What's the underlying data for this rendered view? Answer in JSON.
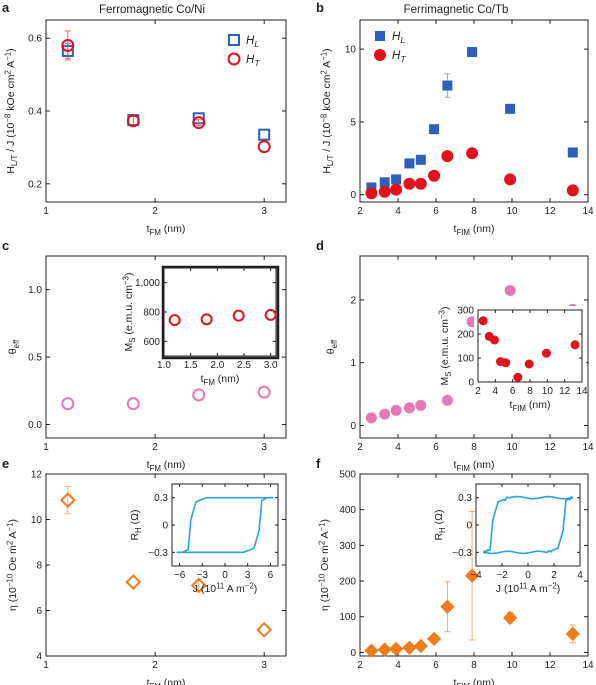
{
  "colors": {
    "blue": "#2e5fba",
    "red": "#e0121b",
    "pink": "#e678b4",
    "orange": "#f07b1c",
    "cyan": "#2aa3de",
    "err_red": "#e35a5a",
    "err_orange": "#f2a35e"
  },
  "chart_data": [
    {
      "panel": "a",
      "type": "scatter",
      "title": "Ferromagnetic Co/Ni",
      "xlabel": "t_FM (nm)",
      "ylabel": "H_L/T / J (10^-8 kOe cm^2 A^-1)",
      "xlim": [
        1,
        3.2
      ],
      "ylim": [
        0.15,
        0.65
      ],
      "xticks": [
        "1",
        "2",
        "3"
      ],
      "yticks": [
        "0.2",
        "0.4",
        "0.6"
      ],
      "legend": {
        "position": "top-right",
        "entries": [
          "H_L",
          "H_T"
        ]
      },
      "series": [
        {
          "name": "H_L",
          "marker": "open-square",
          "color": "blue",
          "x": [
            1.2,
            1.8,
            2.4,
            3.0
          ],
          "y": [
            0.565,
            0.375,
            0.38,
            0.335
          ],
          "err": [
            0.02,
            0,
            0,
            0
          ]
        },
        {
          "name": "H_T",
          "marker": "open-circle",
          "color": "red",
          "x": [
            1.2,
            1.8,
            2.4,
            3.0
          ],
          "y": [
            0.58,
            0.373,
            0.368,
            0.302
          ],
          "err": [
            0.04,
            0.012,
            0.008,
            0
          ]
        }
      ]
    },
    {
      "panel": "b",
      "type": "scatter",
      "title": "Ferrimagnetic Co/Tb",
      "xlabel": "t_FIM (nm)",
      "ylabel": "H_L/T / J (10^-8 kOe cm^2 A^-1)",
      "xlim": [
        2,
        14
      ],
      "ylim": [
        -0.5,
        12
      ],
      "xticks": [
        "2",
        "4",
        "6",
        "8",
        "10",
        "12",
        "14"
      ],
      "yticks": [
        "0",
        "5",
        "10"
      ],
      "legend": {
        "position": "top-left",
        "entries": [
          "H_L",
          "H_T"
        ]
      },
      "series": [
        {
          "name": "H_L",
          "marker": "filled-square",
          "color": "blue",
          "x": [
            2.6,
            3.3,
            3.9,
            4.6,
            5.2,
            5.9,
            6.6,
            7.9,
            9.9,
            13.2
          ],
          "y": [
            0.5,
            0.85,
            1.05,
            2.15,
            2.4,
            4.5,
            7.5,
            9.8,
            5.9,
            2.9
          ],
          "err": [
            0,
            0,
            0,
            0,
            0,
            0,
            0.8,
            0,
            0,
            0
          ]
        },
        {
          "name": "H_T",
          "marker": "filled-circle",
          "color": "red",
          "x": [
            2.6,
            3.3,
            3.9,
            4.6,
            5.2,
            5.9,
            6.6,
            7.9,
            9.9,
            13.2
          ],
          "y": [
            0.1,
            0.2,
            0.35,
            0.75,
            0.75,
            1.3,
            2.65,
            2.85,
            1.05,
            0.3
          ],
          "err": [
            0,
            0,
            0,
            0,
            0,
            0,
            0,
            0,
            0,
            0
          ]
        }
      ]
    },
    {
      "panel": "c",
      "type": "scatter",
      "xlabel": "t_FM (nm)",
      "ylabel": "θ_eff",
      "xlim": [
        1,
        3.2
      ],
      "ylim": [
        -0.1,
        1.25
      ],
      "xticks": [
        "1",
        "2",
        "3"
      ],
      "yticks": [
        "0.0",
        "0.5",
        "1.0"
      ],
      "series": [
        {
          "name": "",
          "marker": "open-circle",
          "color": "pink",
          "x": [
            1.2,
            1.8,
            2.4,
            3.0
          ],
          "y": [
            0.155,
            0.155,
            0.22,
            0.24
          ]
        }
      ],
      "inset": {
        "xlabel": "t_FM (nm)",
        "ylabel": "M_S (e.m.u. cm^-3)",
        "xlim": [
          1.0,
          3.1
        ],
        "ylim": [
          500,
          1100
        ],
        "xticks": [
          "1.0",
          "1.5",
          "2.0",
          "2.5",
          "3.0"
        ],
        "yticks": [
          "600",
          "800",
          "1,000"
        ],
        "x": [
          1.2,
          1.8,
          2.4,
          3.0
        ],
        "y": [
          745,
          750,
          775,
          780
        ]
      }
    },
    {
      "panel": "d",
      "type": "scatter",
      "xlabel": "t_FIM (nm)",
      "ylabel": "θ_eff",
      "xlim": [
        2,
        14
      ],
      "ylim": [
        -0.2,
        2.7
      ],
      "xticks": [
        "2",
        "4",
        "6",
        "8",
        "10",
        "12",
        "14"
      ],
      "yticks": [
        "0",
        "1",
        "2"
      ],
      "series": [
        {
          "name": "",
          "marker": "filled-circle",
          "color": "pink",
          "x": [
            2.6,
            3.3,
            3.9,
            4.6,
            5.2,
            6.6,
            7.9,
            9.9,
            13.2
          ],
          "y": [
            0.12,
            0.18,
            0.24,
            0.28,
            0.32,
            0.4,
            1.65,
            2.15,
            1.85
          ]
        }
      ],
      "inset": {
        "xlabel": "t_FIM (nm)",
        "ylabel": "M_S (e.m.u. cm^-3)",
        "xlim": [
          2,
          14
        ],
        "ylim": [
          0,
          300
        ],
        "xticks": [
          "2",
          "4",
          "6",
          "8",
          "10",
          "12",
          "14"
        ],
        "yticks": [
          "0",
          "100",
          "200",
          "300"
        ],
        "x": [
          2.6,
          3.3,
          3.9,
          4.6,
          5.2,
          6.6,
          7.9,
          9.9,
          13.2
        ],
        "y": [
          255,
          190,
          175,
          85,
          80,
          20,
          75,
          120,
          155
        ]
      }
    },
    {
      "panel": "e",
      "type": "scatter",
      "xlabel": "t_FM (nm)",
      "ylabel": "η (10^-10 Oe m^2 A^-1)",
      "xlim": [
        1,
        3.2
      ],
      "ylim": [
        4,
        12
      ],
      "xticks": [
        "1",
        "2",
        "3"
      ],
      "yticks": [
        "4",
        "6",
        "8",
        "10",
        "12"
      ],
      "series": [
        {
          "name": "",
          "marker": "open-diamond",
          "color": "orange",
          "x": [
            1.2,
            1.8,
            2.4,
            3.0
          ],
          "y": [
            10.85,
            7.25,
            7.1,
            5.15
          ],
          "err": [
            0.6,
            0,
            0.25,
            0
          ]
        }
      ],
      "inset": {
        "type": "line",
        "xlabel": "J (10^11 A m^-2)",
        "ylabel": "R_H (Ω)",
        "xlim": [
          -7,
          7
        ],
        "ylim": [
          -0.45,
          0.45
        ],
        "xticks": [
          "−6",
          "−3",
          "0",
          "3",
          "6"
        ],
        "yticks": [
          "−0.3",
          "0",
          "0.3"
        ],
        "hysteresis": {
          "switch": 4.5,
          "level": 0.3
        }
      }
    },
    {
      "panel": "f",
      "type": "scatter",
      "xlabel": "t_FIM (nm)",
      "ylabel": "η (10^-10 Oe m^2 A^-1)",
      "xlim": [
        2,
        14
      ],
      "ylim": [
        -10,
        500
      ],
      "xticks": [
        "2",
        "4",
        "6",
        "8",
        "10",
        "12",
        "14"
      ],
      "yticks": [
        "0",
        "100",
        "200",
        "300",
        "400",
        "500"
      ],
      "series": [
        {
          "name": "",
          "marker": "filled-diamond",
          "color": "orange",
          "x": [
            2.6,
            3.3,
            3.9,
            4.6,
            5.2,
            5.9,
            6.6,
            7.9,
            9.9,
            13.2
          ],
          "y": [
            5,
            8,
            10,
            13,
            18,
            38,
            128,
            215,
            97,
            52
          ],
          "err": [
            0,
            0,
            0,
            0,
            0,
            10,
            70,
            180,
            15,
            25
          ]
        }
      ],
      "inset": {
        "type": "line",
        "xlabel": "J (10^11 A m^-2)",
        "ylabel": "R_H (Ω)",
        "xlim": [
          -4,
          4
        ],
        "ylim": [
          -0.45,
          0.45
        ],
        "xticks": [
          "−4",
          "−2",
          "0",
          "2",
          "4"
        ],
        "yticks": [
          "−0.3",
          "0",
          "0.3"
        ],
        "hysteresis": {
          "switch": 2.7,
          "level": 0.3
        }
      }
    }
  ]
}
